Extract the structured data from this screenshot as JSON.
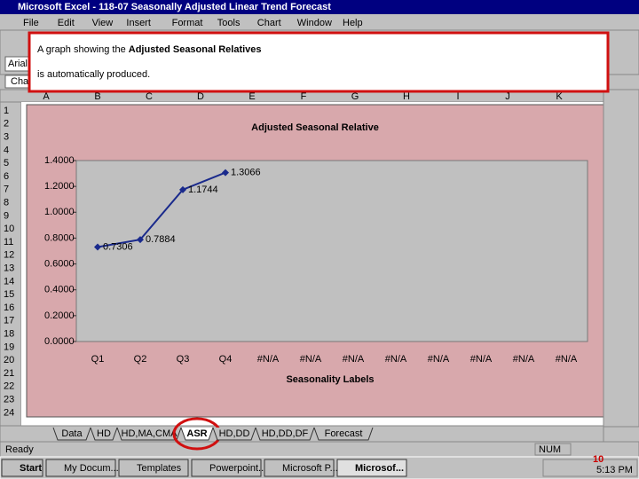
{
  "window": {
    "title": "Microsoft Excel - 118-07 Seasonally Adjusted Linear Trend Forecast"
  },
  "menu": [
    "File",
    "Edit",
    "View",
    "Insert",
    "Format",
    "Tools",
    "Chart",
    "Window",
    "Help"
  ],
  "toolbar": {
    "font_box": "Arial N",
    "name_box": "Cha"
  },
  "callout": {
    "before": "A graph showing the ",
    "bold": "Adjusted Seasonal Relatives",
    "after": " is automatically produced."
  },
  "columns": [
    "A",
    "B",
    "C",
    "D",
    "E",
    "F",
    "G",
    "H",
    "I",
    "J",
    "K"
  ],
  "rows": [
    "1",
    "2",
    "3",
    "4",
    "5",
    "6",
    "7",
    "8",
    "9",
    "10",
    "11",
    "12",
    "13",
    "14",
    "15",
    "16",
    "17",
    "18",
    "19",
    "20",
    "21",
    "22",
    "23",
    "24"
  ],
  "chart_data": {
    "type": "line",
    "title": "Adjusted Seasonal Relative",
    "x_label": "Seasonality Labels",
    "categories": [
      "Q1",
      "Q2",
      "Q3",
      "Q4",
      "#N/A",
      "#N/A",
      "#N/A",
      "#N/A",
      "#N/A",
      "#N/A",
      "#N/A",
      "#N/A"
    ],
    "values": [
      0.7306,
      0.7884,
      1.1744,
      1.3066,
      null,
      null,
      null,
      null,
      null,
      null,
      null,
      null
    ],
    "color": "#1a2a8c",
    "ylim": [
      0,
      1.4
    ],
    "yticks": [
      {
        "value": 0,
        "label": "0.0000"
      },
      {
        "value": 0.2,
        "label": "0.2000"
      },
      {
        "value": 0.4,
        "label": "0.4000"
      },
      {
        "value": 0.6,
        "label": "0.6000"
      },
      {
        "value": 0.8,
        "label": "0.8000"
      },
      {
        "value": 1,
        "label": "1.0000"
      },
      {
        "value": 1.2,
        "label": "1.2000"
      },
      {
        "value": 1.4,
        "label": "1.4000"
      }
    ]
  },
  "sheet_tabs": [
    "Data",
    "HD",
    "HD,MA,CMA",
    "ASR",
    "HD,DD",
    "HD,DD,DF",
    "Forecast"
  ],
  "status": {
    "left": "Ready",
    "right": "NUM"
  },
  "taskbar": {
    "start": "Start",
    "items": [
      "My Docum...",
      "Templates",
      "Powerpoint...",
      "Microsoft P...",
      "Microsof..."
    ],
    "time": "5:13 PM"
  },
  "slide_number": "10"
}
